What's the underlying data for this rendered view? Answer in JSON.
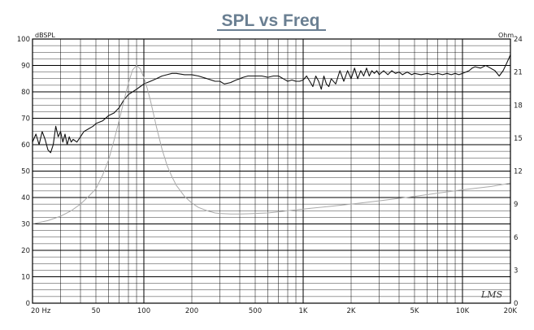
{
  "chart_data": {
    "type": "line",
    "title": "SPL vs Freq",
    "xlabel": "",
    "ylabel_left": "dBSPL",
    "ylabel_right": "Ohm",
    "x_scale": "log",
    "xlim": [
      20,
      20000
    ],
    "ylim_left": [
      0,
      100
    ],
    "ylim_right": [
      0,
      24
    ],
    "grid": true,
    "x_tick_labels": [
      {
        "value": 20,
        "label": "20  Hz"
      },
      {
        "value": 50,
        "label": "50"
      },
      {
        "value": 100,
        "label": "100"
      },
      {
        "value": 200,
        "label": "200"
      },
      {
        "value": 500,
        "label": "500"
      },
      {
        "value": 1000,
        "label": "1K"
      },
      {
        "value": 2000,
        "label": "2K"
      },
      {
        "value": 5000,
        "label": "5K"
      },
      {
        "value": 10000,
        "label": "10K"
      },
      {
        "value": 20000,
        "label": "20K"
      }
    ],
    "y_left_ticks": [
      0,
      10,
      20,
      30,
      40,
      50,
      60,
      70,
      80,
      90,
      100
    ],
    "y_right_ticks": [
      0,
      3,
      6,
      9,
      12,
      15,
      18,
      21,
      24
    ],
    "series": [
      {
        "axis": "left",
        "color": "#111111",
        "x": [
          20,
          21,
          22,
          23,
          24,
          25,
          26,
          27,
          28,
          29,
          30,
          31,
          32,
          33,
          34,
          35,
          36,
          38,
          40,
          42,
          45,
          48,
          50,
          55,
          60,
          65,
          70,
          75,
          80,
          85,
          90,
          95,
          100,
          110,
          120,
          130,
          140,
          150,
          160,
          180,
          200,
          220,
          250,
          280,
          300,
          320,
          350,
          380,
          400,
          420,
          450,
          480,
          500,
          550,
          600,
          650,
          700,
          750,
          800,
          850,
          900,
          950,
          1000,
          1050,
          1100,
          1150,
          1200,
          1250,
          1300,
          1350,
          1400,
          1450,
          1500,
          1600,
          1700,
          1800,
          1900,
          2000,
          2100,
          2200,
          2300,
          2400,
          2500,
          2600,
          2700,
          2800,
          2900,
          3000,
          3200,
          3400,
          3600,
          3800,
          4000,
          4200,
          4500,
          4800,
          5000,
          5500,
          6000,
          6500,
          7000,
          7500,
          8000,
          8500,
          9000,
          9500,
          10000,
          10500,
          11000,
          11500,
          12000,
          13000,
          14000,
          15000,
          16000,
          17000,
          18000,
          19000,
          20000
        ],
        "y": [
          61,
          64,
          60,
          65,
          62,
          58,
          57,
          60,
          67,
          63,
          65,
          61,
          64,
          60,
          63,
          61,
          62,
          61,
          63,
          65,
          66,
          67,
          68,
          69,
          71,
          72,
          74,
          77,
          79,
          80,
          81,
          82,
          83,
          84,
          85,
          86,
          86.5,
          87,
          87,
          86.5,
          86.5,
          86,
          85,
          84,
          84,
          83,
          83.5,
          84.5,
          85,
          85.5,
          86,
          86,
          86,
          86,
          85.5,
          86,
          86,
          85,
          84,
          84.5,
          84,
          84,
          84.5,
          86,
          84,
          82,
          86,
          84,
          81,
          86,
          83,
          82,
          85,
          83,
          88,
          84,
          88,
          85,
          89,
          85,
          88,
          86,
          89,
          86,
          88,
          87,
          88,
          86.5,
          88,
          86.5,
          88,
          87,
          87.5,
          86.5,
          87.5,
          86.5,
          87,
          86.5,
          87,
          86.5,
          87,
          86.5,
          87,
          86.5,
          87,
          86.5,
          87,
          87.5,
          88,
          89,
          89.5,
          89,
          90,
          89,
          88,
          86,
          88,
          91,
          94
        ]
      },
      {
        "axis": "right",
        "color": "#aaaaaa",
        "x": [
          20,
          25,
          30,
          35,
          40,
          45,
          50,
          55,
          60,
          65,
          70,
          75,
          80,
          85,
          90,
          95,
          100,
          105,
          110,
          115,
          120,
          130,
          140,
          150,
          160,
          180,
          200,
          220,
          250,
          280,
          300,
          350,
          400,
          450,
          500,
          600,
          700,
          800,
          1000,
          1500,
          2000,
          3000,
          5000,
          7000,
          10000,
          15000,
          20000
        ],
        "y": [
          7.2,
          7.5,
          7.9,
          8.4,
          9.0,
          9.7,
          10.4,
          11.6,
          13.0,
          14.8,
          16.6,
          18.4,
          20.0,
          21.2,
          21.6,
          21.3,
          20.5,
          19.5,
          18.4,
          17.2,
          16.0,
          14.0,
          12.5,
          11.5,
          10.7,
          9.7,
          9.1,
          8.7,
          8.4,
          8.2,
          8.15,
          8.1,
          8.1,
          8.12,
          8.15,
          8.2,
          8.3,
          8.4,
          8.55,
          8.8,
          9.0,
          9.3,
          9.7,
          10.0,
          10.3,
          10.6,
          10.9
        ]
      }
    ],
    "watermark": "LMS"
  }
}
